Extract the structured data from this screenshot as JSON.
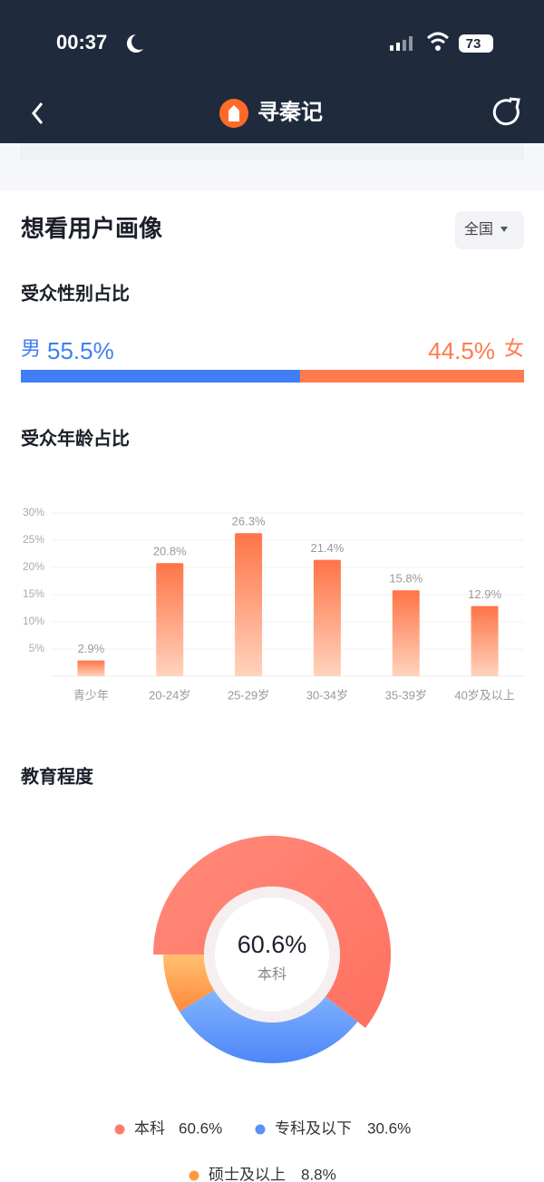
{
  "status_bar": {
    "time": "00:37",
    "battery": "73"
  },
  "nav": {
    "title": "寻秦记"
  },
  "section": {
    "title": "想看用户画像",
    "region": "全国"
  },
  "gender": {
    "title": "受众性别占比",
    "items": [
      {
        "name": "男",
        "value": 55.5,
        "label": "55.5%",
        "color": "#3f7ef6"
      },
      {
        "name": "女",
        "value": 44.5,
        "label": "44.5%",
        "color": "#ff7a4c"
      }
    ]
  },
  "age_chart": {
    "type": "bar",
    "title": "受众年龄占比",
    "categories": [
      "青少年",
      "20-24岁",
      "25-29岁",
      "30-34岁",
      "35-39岁",
      "40岁及以上"
    ],
    "values": [
      2.9,
      20.8,
      26.3,
      21.4,
      15.8,
      12.9
    ],
    "value_labels": [
      "2.9%",
      "20.8%",
      "26.3%",
      "21.4%",
      "15.8%",
      "12.9%"
    ],
    "color": "#ff7a4c",
    "ylim": [
      0,
      30
    ],
    "yticks": [
      {
        "value": 5,
        "label": "5%"
      },
      {
        "value": 10,
        "label": "10%"
      },
      {
        "value": 15,
        "label": "15%"
      },
      {
        "value": 20,
        "label": "20%"
      },
      {
        "value": 25,
        "label": "25%"
      },
      {
        "value": 30,
        "label": "30%"
      }
    ],
    "grid": true
  },
  "education_chart": {
    "type": "pie",
    "title": "教育程度",
    "categories": [
      "本科",
      "专科及以下",
      "硕士及以上"
    ],
    "values": [
      60.6,
      30.6,
      8.8
    ],
    "value_labels": [
      "60.6%",
      "30.6%",
      "8.8%"
    ],
    "colors": [
      "#ff7b6e",
      "#5b8ff9",
      "#ff9a3c"
    ]
  }
}
